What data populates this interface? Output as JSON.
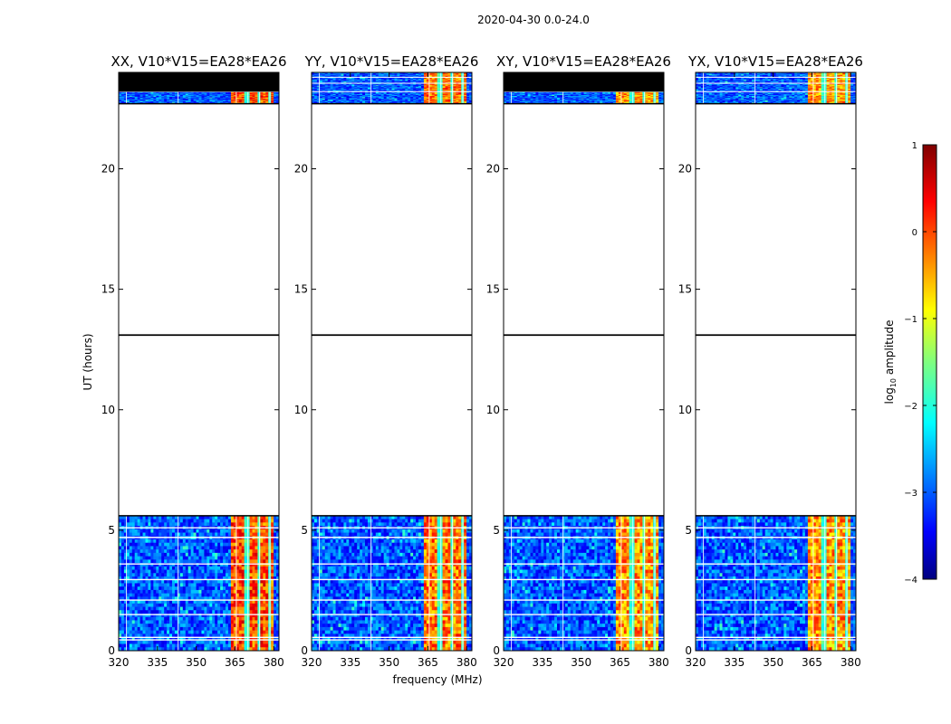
{
  "chart_data": {
    "type": "heatmap",
    "suptitle": "2020-04-30 0.0-24.0",
    "xlabel": "frequency (MHz)",
    "ylabel": "UT (hours)",
    "xlim": [
      320,
      382
    ],
    "ylim": [
      0,
      24
    ],
    "xticks": [
      320,
      335,
      350,
      365,
      380
    ],
    "yticks": [
      0,
      5,
      10,
      15,
      20
    ],
    "data_blocks_ut_hours": [
      [
        0,
        5.6
      ],
      [
        22.7,
        24.0
      ]
    ],
    "marker_line_ut_hours": 13.1,
    "bright_band_mhz": [
      363,
      380
    ],
    "panels": [
      {
        "title": "XX, V10*V15=EA28*EA26",
        "top_mask_ut": 23.2
      },
      {
        "title": "YY, V10*V15=EA28*EA26",
        "top_mask_ut": null
      },
      {
        "title": "XY, V10*V15=EA28*EA26",
        "top_mask_ut": 23.2
      },
      {
        "title": "YX, V10*V15=EA28*EA26",
        "top_mask_ut": null
      }
    ],
    "colorbar": {
      "label": "log10 amplitude",
      "label_base": "log",
      "label_sub": "10",
      "label_rest": " amplitude",
      "range": [
        -4,
        1
      ],
      "ticks": [
        -4,
        -3,
        -2,
        -1,
        0,
        1
      ],
      "tick_labels": [
        "−4",
        "−3",
        "−2",
        "−1",
        "0",
        "1"
      ],
      "colormap": "jet"
    }
  }
}
